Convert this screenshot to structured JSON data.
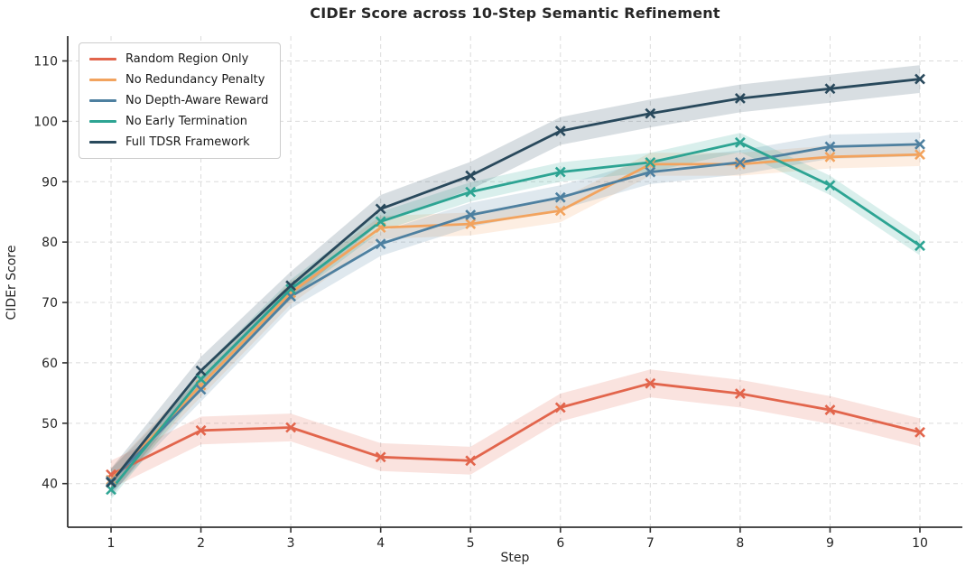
{
  "title": "CIDEr Score across 10-Step Semantic Refinement",
  "chart_data": {
    "type": "line",
    "title": "CIDEr Score across 10-Step Semantic Refinement",
    "xlabel": "Step",
    "ylabel": "CIDEr Score",
    "x": [
      1,
      2,
      3,
      4,
      5,
      6,
      7,
      8,
      9,
      10
    ],
    "yticks": [
      40,
      50,
      60,
      70,
      80,
      90,
      100,
      110
    ],
    "ylim": [
      32.5,
      114
    ],
    "xlim": [
      0.52,
      10.48
    ],
    "grid": true,
    "grid_style": "dashed",
    "marker": "x",
    "legend_position": "upper left",
    "series": [
      {
        "name": "Random Region Only",
        "color": "#E2654C",
        "band_halfwidth": 2.3,
        "values": [
          41.5,
          48.8,
          49.3,
          44.4,
          43.8,
          52.6,
          56.6,
          54.9,
          52.2,
          48.5
        ]
      },
      {
        "name": "No Redundancy Penalty",
        "color": "#F2A35E",
        "band_halfwidth": 1.9,
        "values": [
          40.6,
          56.3,
          71.6,
          82.4,
          83.0,
          85.2,
          92.9,
          92.9,
          94.1,
          94.5
        ]
      },
      {
        "name": "No Depth-Aware Reward",
        "color": "#4E80A0",
        "band_halfwidth": 2.0,
        "values": [
          40.4,
          55.6,
          71.0,
          79.7,
          84.5,
          87.4,
          91.6,
          93.2,
          95.8,
          96.2
        ]
      },
      {
        "name": "No Early Termination",
        "color": "#2DA493",
        "band_halfwidth": 1.6,
        "values": [
          39.0,
          57.3,
          72.2,
          83.4,
          88.3,
          91.6,
          93.2,
          96.5,
          89.4,
          79.4
        ]
      },
      {
        "name": "Full TDSR Framework",
        "color": "#29495C",
        "band_halfwidth": 2.3,
        "values": [
          40.2,
          58.7,
          72.8,
          85.5,
          91.0,
          98.4,
          101.3,
          103.8,
          105.4,
          107.0
        ]
      }
    ]
  }
}
